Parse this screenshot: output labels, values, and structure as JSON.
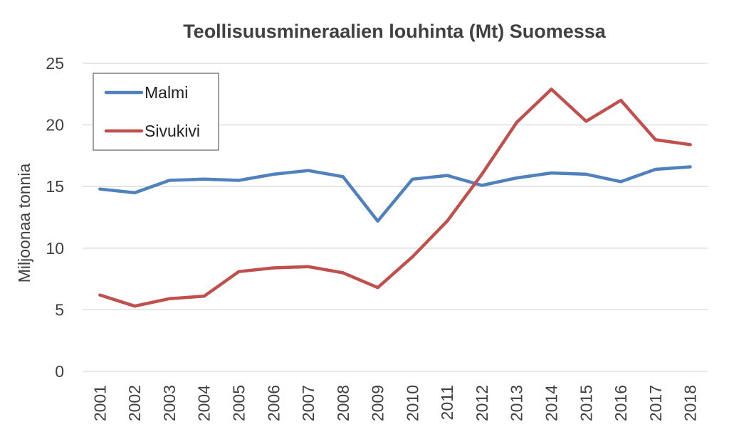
{
  "chart_data": {
    "type": "line",
    "title": "Teollisuusmineraalien louhinta (Mt) Suomessa",
    "xlabel": "",
    "ylabel": "Miljoonaa tonnia",
    "categories": [
      "2001",
      "2002",
      "2003",
      "2004",
      "2005",
      "2006",
      "2007",
      "2008",
      "2009",
      "2010",
      "2011",
      "2012",
      "2013",
      "2014",
      "2015",
      "2016",
      "2017",
      "2018"
    ],
    "ylim": [
      0,
      25
    ],
    "yticks": [
      0,
      5,
      10,
      15,
      20,
      25
    ],
    "grid": true,
    "legend_position": "top-left",
    "series": [
      {
        "name": "Malmi",
        "color": "#4f81bd",
        "values": [
          14.8,
          14.5,
          15.5,
          15.6,
          15.5,
          16.0,
          16.3,
          15.8,
          12.2,
          15.6,
          15.9,
          15.1,
          15.7,
          16.1,
          16.0,
          15.4,
          16.4,
          16.6
        ]
      },
      {
        "name": "Sivukivi",
        "color": "#c0504d",
        "values": [
          6.2,
          5.3,
          5.9,
          6.1,
          8.1,
          8.4,
          8.5,
          8.0,
          6.8,
          9.3,
          12.2,
          16.0,
          20.2,
          22.9,
          20.3,
          22.0,
          18.8,
          18.4
        ]
      }
    ]
  }
}
